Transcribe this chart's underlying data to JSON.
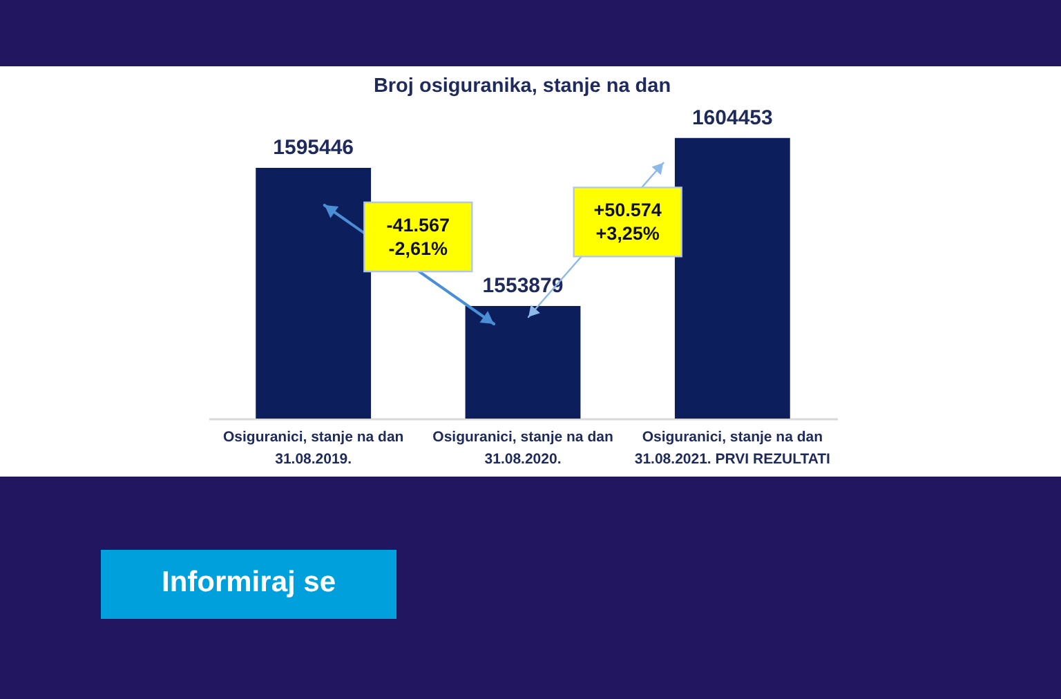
{
  "chart_data": {
    "type": "bar",
    "title": "Broj osiguranika, stanje na dan",
    "categories": [
      "Osiguranici, stanje na dan\n31.08.2019.",
      "Osiguranici, stanje na dan\n31.08.2020.",
      "Osiguranici, stanje na dan\n31.08.2021. PRVI REZULTATI"
    ],
    "values": [
      1595446,
      1553879,
      1604453
    ],
    "color": "#0c1f5c",
    "ylim": [
      1520000,
      1626000
    ],
    "tick_labels": "x",
    "data_labels": true,
    "annotations": [
      "-41.567\n-2,61%",
      "+50.574\n+3,25%",
      "Informiraj se"
    ]
  }
}
